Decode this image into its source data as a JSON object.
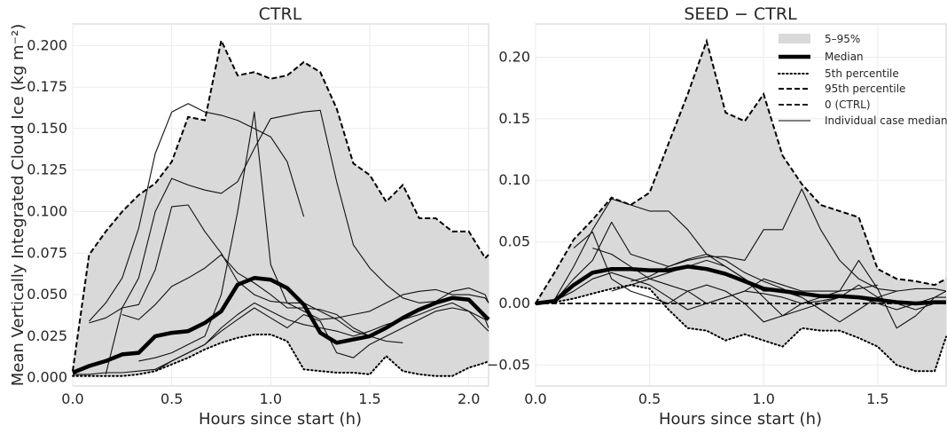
{
  "chart_data": [
    {
      "type": "line",
      "title": "CTRL",
      "xlabel": "Hours since start (h)",
      "ylabel": "Mean Vertically Integrated Cloud Ice (kg m⁻²)",
      "xlim": [
        0,
        2.1
      ],
      "ylim": [
        -0.005,
        0.213
      ],
      "xticks": [
        0.0,
        0.5,
        1.0,
        1.5,
        2.0
      ],
      "xtick_labels": [
        "0.0",
        "0.5",
        "1.0",
        "1.5",
        "2.0"
      ],
      "yticks": [
        0.0,
        0.025,
        0.05,
        0.075,
        0.1,
        0.125,
        0.15,
        0.175,
        0.2
      ],
      "ytick_labels": [
        "0.000",
        "0.025",
        "0.050",
        "0.075",
        "0.100",
        "0.125",
        "0.150",
        "0.175",
        "0.200"
      ],
      "grid": true,
      "legend": false,
      "band": {
        "x": [
          0.0,
          0.083,
          0.167,
          0.25,
          0.333,
          0.417,
          0.5,
          0.583,
          0.667,
          0.75,
          0.833,
          0.917,
          1.0,
          1.083,
          1.167,
          1.25,
          1.333,
          1.417,
          1.5,
          1.583,
          1.667,
          1.75,
          1.833,
          1.917,
          2.0,
          2.083,
          2.1
        ],
        "lower": [
          0.001,
          0.001,
          0.001,
          0.001,
          0.002,
          0.004,
          0.008,
          0.012,
          0.017,
          0.021,
          0.024,
          0.026,
          0.026,
          0.022,
          0.005,
          0.004,
          0.003,
          0.003,
          0.002,
          0.013,
          0.004,
          0.002,
          0.001,
          0.001,
          0.006,
          0.009,
          0.01
        ],
        "upper": [
          0.004,
          0.074,
          0.088,
          0.1,
          0.11,
          0.117,
          0.13,
          0.157,
          0.155,
          0.203,
          0.182,
          0.184,
          0.18,
          0.182,
          0.19,
          0.184,
          0.162,
          0.129,
          0.122,
          0.106,
          0.116,
          0.096,
          0.096,
          0.088,
          0.088,
          0.072,
          0.074
        ]
      },
      "median": {
        "x": [
          0.0,
          0.083,
          0.167,
          0.25,
          0.333,
          0.417,
          0.5,
          0.583,
          0.667,
          0.75,
          0.833,
          0.917,
          1.0,
          1.083,
          1.167,
          1.25,
          1.333,
          1.417,
          1.5,
          1.583,
          1.667,
          1.75,
          1.833,
          1.917,
          2.0,
          2.083,
          2.1
        ],
        "y": [
          0.003,
          0.007,
          0.01,
          0.014,
          0.015,
          0.025,
          0.027,
          0.028,
          0.033,
          0.04,
          0.056,
          0.06,
          0.059,
          0.054,
          0.044,
          0.027,
          0.021,
          0.023,
          0.025,
          0.03,
          0.036,
          0.041,
          0.045,
          0.048,
          0.047,
          0.037,
          0.035
        ]
      },
      "cases": [
        {
          "x": [
            0.083,
            0.167,
            0.25,
            0.333,
            0.417,
            0.5,
            0.583,
            0.667,
            0.75,
            0.833,
            0.917,
            1.0,
            1.083,
            1.167
          ],
          "y": [
            0.034,
            0.045,
            0.06,
            0.09,
            0.135,
            0.16,
            0.165,
            0.16,
            0.158,
            0.155,
            0.15,
            0.145,
            0.13,
            0.097
          ]
        },
        {
          "x": [
            0.083,
            0.167,
            0.25,
            0.333,
            0.417,
            0.5,
            0.583,
            0.667,
            0.75,
            0.833,
            0.917,
            1.0,
            1.083,
            1.167,
            1.25,
            1.333,
            1.417,
            1.5,
            1.583,
            1.667,
            1.75,
            1.833,
            1.917,
            2.0,
            2.083,
            2.1
          ],
          "y": [
            0.033,
            0.036,
            0.042,
            0.06,
            0.1,
            0.12,
            0.116,
            0.113,
            0.111,
            0.118,
            0.138,
            0.156,
            0.158,
            0.16,
            0.161,
            0.118,
            0.08,
            0.066,
            0.056,
            0.048,
            0.045,
            0.046,
            0.052,
            0.054,
            0.05,
            0.045
          ]
        },
        {
          "x": [
            0.167,
            0.25,
            0.333,
            0.417,
            0.5,
            0.583,
            0.667,
            0.75,
            0.833,
            0.917,
            1.0,
            1.083,
            1.167,
            1.25,
            1.333,
            1.417,
            1.5
          ],
          "y": [
            0.002,
            0.042,
            0.044,
            0.065,
            0.103,
            0.104,
            0.088,
            0.075,
            0.058,
            0.05,
            0.046,
            0.045,
            0.045,
            0.04,
            0.035,
            0.028,
            0.025
          ]
        },
        {
          "x": [
            0.25,
            0.333,
            0.417,
            0.5,
            0.583,
            0.667,
            0.75,
            0.833,
            0.917,
            1.0,
            1.083,
            1.167,
            1.25,
            1.333,
            1.417,
            1.5,
            1.583,
            1.667
          ],
          "y": [
            0.038,
            0.035,
            0.044,
            0.055,
            0.06,
            0.066,
            0.074,
            0.063,
            0.057,
            0.05,
            0.042,
            0.042,
            0.041,
            0.038,
            0.03,
            0.025,
            0.022,
            0.021
          ]
        },
        {
          "x": [
            0.333,
            0.417,
            0.5,
            0.583,
            0.667,
            0.75,
            0.833,
            0.917,
            1.0,
            1.083,
            1.167,
            1.25,
            1.333,
            1.417,
            1.5,
            1.583,
            1.667,
            1.75,
            1.833,
            1.917,
            2.0,
            2.083,
            2.1
          ],
          "y": [
            0.01,
            0.012,
            0.015,
            0.02,
            0.025,
            0.05,
            0.1,
            0.16,
            0.068,
            0.045,
            0.04,
            0.035,
            0.036,
            0.038,
            0.04,
            0.045,
            0.05,
            0.052,
            0.053,
            0.05,
            0.05,
            0.048,
            0.045
          ]
        },
        {
          "x": [
            0.0,
            0.083,
            0.167,
            0.25,
            0.333,
            0.417,
            0.5,
            0.583,
            0.667,
            0.75,
            0.833,
            0.917,
            1.0,
            1.083,
            1.167,
            1.25,
            1.333,
            1.417,
            1.5,
            1.583,
            1.667,
            1.75,
            1.833,
            1.917,
            2.0,
            2.083,
            2.1
          ],
          "y": [
            0.002,
            0.002,
            0.003,
            0.003,
            0.004,
            0.005,
            0.01,
            0.015,
            0.02,
            0.03,
            0.038,
            0.045,
            0.04,
            0.035,
            0.032,
            0.03,
            0.028,
            0.025,
            0.028,
            0.032,
            0.035,
            0.038,
            0.042,
            0.045,
            0.04,
            0.03,
            0.028
          ]
        },
        {
          "x": [
            0.417,
            0.5,
            0.583,
            0.667,
            0.75,
            0.833,
            0.917,
            1.0,
            1.083,
            1.167,
            1.25,
            1.333,
            1.417,
            1.5,
            1.583,
            1.667,
            1.75,
            1.833,
            1.917,
            2.0,
            2.083,
            2.1
          ],
          "y": [
            0.004,
            0.01,
            0.015,
            0.02,
            0.028,
            0.035,
            0.042,
            0.036,
            0.03,
            0.038,
            0.034,
            0.015,
            0.012,
            0.02,
            0.025,
            0.03,
            0.035,
            0.04,
            0.042,
            0.04,
            0.035,
            0.03
          ]
        }
      ]
    },
    {
      "type": "line",
      "title": "SEED − CTRL",
      "xlabel": "Hours since start (h)",
      "ylabel": "",
      "xlim": [
        0,
        1.8
      ],
      "ylim": [
        -0.067,
        0.227
      ],
      "xticks": [
        0.0,
        0.5,
        1.0,
        1.5
      ],
      "xtick_labels": [
        "0.0",
        "0.5",
        "1.0",
        "1.5"
      ],
      "yticks": [
        -0.05,
        0.0,
        0.05,
        0.1,
        0.15,
        0.2
      ],
      "ytick_labels": [
        "−0.05",
        "0.00",
        "0.05",
        "0.10",
        "0.15",
        "0.20"
      ],
      "grid": true,
      "legend": "top-right",
      "legend_entries": [
        "5–95%",
        "Median",
        "5th percentile",
        "95th percentile",
        "0 (CTRL)",
        "Individual case medians"
      ],
      "band": {
        "x": [
          0.0,
          0.083,
          0.167,
          0.25,
          0.333,
          0.417,
          0.5,
          0.583,
          0.667,
          0.75,
          0.833,
          0.917,
          1.0,
          1.083,
          1.167,
          1.25,
          1.333,
          1.417,
          1.5,
          1.583,
          1.667,
          1.75,
          1.8
        ],
        "lower": [
          0.0,
          0.001,
          0.004,
          0.008,
          0.012,
          0.015,
          0.012,
          -0.005,
          -0.02,
          -0.022,
          -0.03,
          -0.025,
          -0.03,
          -0.035,
          -0.02,
          -0.022,
          -0.022,
          -0.028,
          -0.035,
          -0.05,
          -0.055,
          -0.055,
          -0.027
        ],
        "upper": [
          0.0,
          0.025,
          0.052,
          0.068,
          0.086,
          0.08,
          0.09,
          0.13,
          0.17,
          0.213,
          0.155,
          0.148,
          0.17,
          0.12,
          0.097,
          0.08,
          0.075,
          0.07,
          0.028,
          0.02,
          0.018,
          0.015,
          0.02
        ]
      },
      "median": {
        "x": [
          0.0,
          0.083,
          0.167,
          0.25,
          0.333,
          0.417,
          0.5,
          0.583,
          0.667,
          0.75,
          0.833,
          0.917,
          1.0,
          1.083,
          1.167,
          1.25,
          1.333,
          1.417,
          1.5,
          1.583,
          1.667,
          1.75,
          1.8
        ],
        "y": [
          0.0,
          0.002,
          0.015,
          0.025,
          0.028,
          0.028,
          0.027,
          0.027,
          0.03,
          0.028,
          0.024,
          0.018,
          0.012,
          0.01,
          0.008,
          0.006,
          0.006,
          0.005,
          0.003,
          0.001,
          0.0,
          0.001,
          0.001
        ]
      },
      "zero_line": {
        "x": [
          0.0,
          1.8
        ],
        "y": [
          0.0,
          0.0
        ]
      },
      "cases": [
        {
          "x": [
            0.0,
            0.083,
            0.167,
            0.25,
            0.333,
            0.417,
            0.5,
            0.583,
            0.667,
            0.75,
            0.833,
            0.917,
            1.0,
            1.083,
            1.167
          ],
          "y": [
            0.0,
            0.003,
            0.03,
            0.06,
            0.085,
            0.08,
            0.075,
            0.075,
            0.06,
            0.04,
            0.03,
            0.02,
            0.01,
            0.01,
            0.005
          ]
        },
        {
          "x": [
            0.083,
            0.167,
            0.25,
            0.333,
            0.417,
            0.5,
            0.583,
            0.667,
            0.75,
            0.833,
            0.917,
            1.0,
            1.083,
            1.167,
            1.25,
            1.333,
            1.417,
            1.5,
            1.583,
            1.667,
            1.75,
            1.8
          ],
          "y": [
            0.002,
            0.02,
            0.035,
            0.066,
            0.04,
            0.035,
            0.03,
            0.035,
            0.038,
            0.038,
            0.035,
            0.06,
            0.06,
            0.093,
            0.06,
            0.035,
            0.02,
            0.012,
            0.01,
            0.012,
            0.012,
            0.01
          ]
        },
        {
          "x": [
            0.167,
            0.25,
            0.333,
            0.417,
            0.5,
            0.583,
            0.667,
            0.75,
            0.833,
            0.917,
            1.0,
            1.083,
            1.167,
            1.25,
            1.333,
            1.417,
            1.5
          ],
          "y": [
            0.045,
            0.058,
            0.02,
            0.01,
            0.005,
            0.0,
            0.01,
            0.015,
            0.01,
            0.0,
            -0.015,
            -0.01,
            0.0,
            0.005,
            0.01,
            0.012,
            0.015
          ]
        },
        {
          "x": [
            0.25,
            0.333,
            0.417,
            0.5,
            0.583,
            0.667,
            0.75,
            0.833,
            0.917,
            1.0,
            1.083,
            1.167,
            1.25,
            1.333,
            1.417,
            1.5,
            1.583,
            1.667,
            1.75,
            1.8
          ],
          "y": [
            0.045,
            0.04,
            0.03,
            0.02,
            0.015,
            0.01,
            0.0,
            0.005,
            0.01,
            0.02,
            0.015,
            0.01,
            0.01,
            0.01,
            0.035,
            0.012,
            -0.02,
            -0.01,
            0.005,
            0.01
          ]
        },
        {
          "x": [
            0.333,
            0.417,
            0.5,
            0.583,
            0.667,
            0.75,
            0.833,
            0.917,
            1.0,
            1.083,
            1.167,
            1.25,
            1.333,
            1.417,
            1.5,
            1.583,
            1.667,
            1.75,
            1.8
          ],
          "y": [
            0.01,
            0.015,
            0.02,
            0.025,
            0.03,
            0.035,
            0.03,
            0.02,
            0.005,
            -0.01,
            -0.005,
            0.0,
            0.005,
            0.015,
            0.005,
            0.0,
            -0.005,
            0.0,
            0.002
          ]
        },
        {
          "x": [
            0.417,
            0.5,
            0.583,
            0.667,
            0.75,
            0.833,
            0.917,
            1.0,
            1.083,
            1.167,
            1.25,
            1.333,
            1.417,
            1.5,
            1.583
          ],
          "y": [
            0.018,
            0.022,
            0.03,
            0.036,
            0.04,
            0.035,
            0.025,
            0.018,
            0.012,
            0.005,
            -0.005,
            -0.015,
            -0.005,
            0.005,
            0.01
          ]
        },
        {
          "x": [
            0.0,
            0.083,
            0.167,
            0.25,
            0.333,
            0.417,
            0.5,
            0.583,
            0.667,
            0.75,
            0.833,
            0.917,
            1.0,
            1.083,
            1.167,
            1.25,
            1.333,
            1.417,
            1.5,
            1.583,
            1.667,
            1.75,
            1.8
          ],
          "y": [
            0.0,
            0.002,
            0.01,
            0.02,
            0.025,
            0.02,
            0.015,
            0.005,
            -0.005,
            0.0,
            0.005,
            0.01,
            0.008,
            0.005,
            0.0,
            0.002,
            0.005,
            0.005,
            0.0,
            -0.005,
            0.0,
            0.005,
            0.005
          ]
        }
      ]
    }
  ]
}
